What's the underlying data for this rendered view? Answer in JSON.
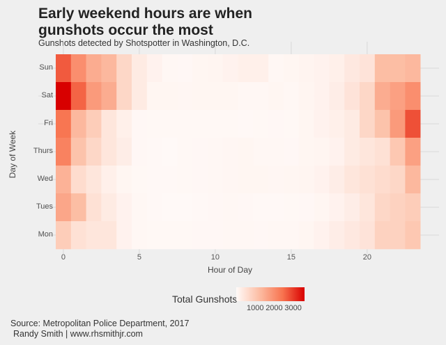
{
  "title": "Early weekend hours are when gunshots occur the most",
  "subtitle": "Gunshots detected by Shotspotter in Washington, D.C.",
  "source": "Source: Metropolitan Police Department, 2017",
  "credit": "Randy Smith | www.rhsmithjr.com",
  "chart_data": {
    "type": "heatmap",
    "xlabel": "Hour of Day",
    "ylabel": "Day of Week",
    "x_ticks": [
      "0",
      "5",
      "10",
      "15",
      "20"
    ],
    "x_tick_values": [
      0,
      5,
      10,
      15,
      20
    ],
    "xlim": [
      -0.5,
      23.5
    ],
    "days": [
      "Sun",
      "Sat",
      "Fri",
      "Thurs",
      "Wed",
      "Tues",
      "Mon"
    ],
    "hours": [
      0,
      1,
      2,
      3,
      4,
      5,
      6,
      7,
      8,
      9,
      10,
      11,
      12,
      13,
      14,
      15,
      16,
      17,
      18,
      19,
      20,
      21,
      22,
      23
    ],
    "values": [
      [
        2700,
        2000,
        1500,
        1300,
        700,
        300,
        150,
        60,
        50,
        80,
        100,
        150,
        200,
        200,
        60,
        80,
        120,
        150,
        200,
        350,
        450,
        1200,
        1200,
        1300
      ],
      [
        3600,
        2600,
        1800,
        1500,
        700,
        300,
        80,
        80,
        70,
        80,
        80,
        80,
        60,
        60,
        80,
        60,
        100,
        150,
        250,
        450,
        700,
        1500,
        1700,
        2000
      ],
      [
        2400,
        1300,
        900,
        400,
        200,
        50,
        40,
        40,
        40,
        40,
        40,
        40,
        30,
        40,
        50,
        40,
        80,
        150,
        200,
        300,
        700,
        1100,
        1800,
        2800
      ],
      [
        2200,
        1100,
        700,
        400,
        250,
        50,
        30,
        20,
        40,
        50,
        60,
        70,
        80,
        60,
        60,
        50,
        80,
        100,
        150,
        300,
        400,
        500,
        1000,
        1700
      ],
      [
        1400,
        600,
        400,
        200,
        80,
        40,
        30,
        30,
        40,
        50,
        60,
        70,
        80,
        80,
        70,
        80,
        100,
        150,
        250,
        400,
        500,
        600,
        700,
        1300
      ],
      [
        1600,
        1200,
        500,
        300,
        150,
        60,
        30,
        20,
        20,
        30,
        50,
        60,
        50,
        30,
        30,
        40,
        50,
        80,
        150,
        250,
        400,
        700,
        800,
        900
      ],
      [
        900,
        500,
        400,
        400,
        150,
        60,
        40,
        40,
        40,
        50,
        50,
        60,
        60,
        50,
        60,
        60,
        80,
        150,
        250,
        350,
        450,
        800,
        800,
        1000
      ]
    ],
    "legend": {
      "title": "Total Gunshots",
      "ticks": [
        "1000",
        "2000",
        "3000"
      ],
      "tick_values": [
        1000,
        2000,
        3000
      ],
      "range": [
        0,
        3600
      ],
      "position": "bottom"
    },
    "colors": {
      "low": "#fffaf8",
      "mid1": "#fcbba1",
      "mid2": "#f8734f",
      "high": "#d80000"
    }
  }
}
